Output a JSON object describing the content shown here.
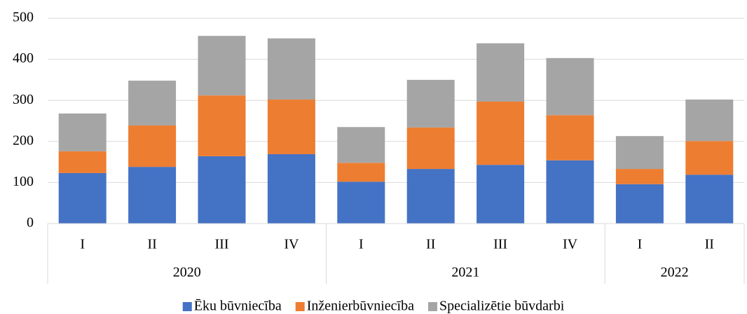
{
  "chart_data": {
    "type": "stacked_bar",
    "groups": [
      {
        "name": "2020",
        "categories": [
          "I",
          "II",
          "III",
          "IV"
        ]
      },
      {
        "name": "2021",
        "categories": [
          "I",
          "II",
          "III",
          "IV"
        ]
      },
      {
        "name": "2022",
        "categories": [
          "I",
          "II"
        ]
      }
    ],
    "series": [
      {
        "name": "Ēku būvniecība",
        "color": "#4472c4",
        "values": [
          123,
          138,
          164,
          169,
          102,
          133,
          143,
          154,
          96,
          119
        ]
      },
      {
        "name": "Inženierbūvniecība",
        "color": "#ed7d31",
        "values": [
          53,
          101,
          148,
          133,
          46,
          101,
          154,
          110,
          37,
          82
        ]
      },
      {
        "name": "Specializētie būvdarbi",
        "color": "#a5a5a5",
        "values": [
          92,
          109,
          145,
          149,
          87,
          116,
          142,
          139,
          80,
          101
        ]
      }
    ],
    "ylim": [
      0,
      500
    ],
    "yticks": [
      0,
      100,
      200,
      300,
      400,
      500
    ],
    "grid": true,
    "legend": "bottom"
  }
}
